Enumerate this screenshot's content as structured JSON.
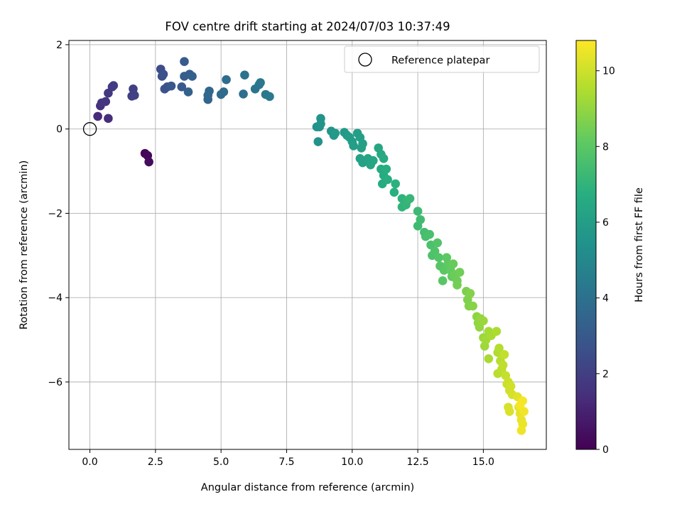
{
  "chart_data": {
    "type": "scatter",
    "title": "FOV centre drift starting at 2024/07/03 10:37:49",
    "xlabel": "Angular distance from reference (arcmin)",
    "ylabel": "Rotation from reference (arcmin)",
    "xlim": [
      -0.8,
      17.4
    ],
    "ylim": [
      -7.6,
      2.1
    ],
    "xticks": [
      0.0,
      2.5,
      5.0,
      7.5,
      10.0,
      12.5,
      15.0
    ],
    "xtick_labels": [
      "0.0",
      "2.5",
      "5.0",
      "7.5",
      "10.0",
      "12.5",
      "15.0"
    ],
    "yticks": [
      2,
      0,
      -2,
      -4,
      -6
    ],
    "ytick_labels": [
      "2",
      "0",
      "−2",
      "−4",
      "−6"
    ],
    "grid": true,
    "legend": {
      "position": "top-right",
      "entries": [
        "Reference platepar"
      ]
    },
    "reference_point": {
      "x": 0.0,
      "y": 0.0
    },
    "colorbar": {
      "label": "Hours from first FF file",
      "range": [
        0,
        10.8
      ],
      "ticks": [
        0,
        2,
        4,
        6,
        8,
        10
      ],
      "tick_labels": [
        "0",
        "2",
        "4",
        "6",
        "8",
        "10"
      ],
      "colormap": "viridis"
    },
    "points": [
      {
        "x": 2.1,
        "y": -0.58,
        "c": 0.1
      },
      {
        "x": 2.2,
        "y": -0.63,
        "c": 0.2
      },
      {
        "x": 2.25,
        "y": -0.78,
        "c": 0.3
      },
      {
        "x": 0.3,
        "y": 0.3,
        "c": 1.3
      },
      {
        "x": 0.7,
        "y": 0.25,
        "c": 1.4
      },
      {
        "x": 0.4,
        "y": 0.55,
        "c": 1.5
      },
      {
        "x": 0.45,
        "y": 0.62,
        "c": 1.6
      },
      {
        "x": 0.6,
        "y": 0.65,
        "c": 1.7
      },
      {
        "x": 0.7,
        "y": 0.85,
        "c": 1.75
      },
      {
        "x": 0.85,
        "y": 1.0,
        "c": 1.8
      },
      {
        "x": 0.9,
        "y": 1.03,
        "c": 1.9
      },
      {
        "x": 1.6,
        "y": 0.78,
        "c": 2.0
      },
      {
        "x": 1.65,
        "y": 0.95,
        "c": 2.05
      },
      {
        "x": 1.7,
        "y": 0.8,
        "c": 2.1
      },
      {
        "x": 2.7,
        "y": 1.42,
        "c": 2.5
      },
      {
        "x": 2.75,
        "y": 1.25,
        "c": 2.6
      },
      {
        "x": 2.8,
        "y": 1.3,
        "c": 2.7
      },
      {
        "x": 2.85,
        "y": 0.95,
        "c": 2.75
      },
      {
        "x": 2.95,
        "y": 1.0,
        "c": 2.8
      },
      {
        "x": 3.1,
        "y": 1.02,
        "c": 2.9
      },
      {
        "x": 3.5,
        "y": 1.0,
        "c": 3.0
      },
      {
        "x": 3.6,
        "y": 1.6,
        "c": 3.1
      },
      {
        "x": 3.6,
        "y": 1.25,
        "c": 3.15
      },
      {
        "x": 3.8,
        "y": 1.3,
        "c": 3.2
      },
      {
        "x": 3.9,
        "y": 1.25,
        "c": 3.3
      },
      {
        "x": 3.75,
        "y": 0.88,
        "c": 3.35
      },
      {
        "x": 4.5,
        "y": 0.7,
        "c": 3.5
      },
      {
        "x": 4.5,
        "y": 0.8,
        "c": 3.55
      },
      {
        "x": 4.55,
        "y": 0.9,
        "c": 3.6
      },
      {
        "x": 5.0,
        "y": 0.82,
        "c": 3.7
      },
      {
        "x": 5.1,
        "y": 0.88,
        "c": 3.75
      },
      {
        "x": 5.2,
        "y": 1.17,
        "c": 3.8
      },
      {
        "x": 5.85,
        "y": 0.83,
        "c": 3.9
      },
      {
        "x": 5.9,
        "y": 1.28,
        "c": 4.0
      },
      {
        "x": 6.3,
        "y": 0.95,
        "c": 4.1
      },
      {
        "x": 6.45,
        "y": 1.05,
        "c": 4.2
      },
      {
        "x": 6.5,
        "y": 1.1,
        "c": 4.25
      },
      {
        "x": 6.7,
        "y": 0.82,
        "c": 4.3
      },
      {
        "x": 6.85,
        "y": 0.77,
        "c": 4.4
      },
      {
        "x": 8.65,
        "y": 0.05,
        "c": 5.4
      },
      {
        "x": 8.7,
        "y": -0.3,
        "c": 5.45
      },
      {
        "x": 8.75,
        "y": 0.05,
        "c": 5.5
      },
      {
        "x": 8.8,
        "y": 0.25,
        "c": 5.55
      },
      {
        "x": 8.8,
        "y": 0.12,
        "c": 5.6
      },
      {
        "x": 9.2,
        "y": -0.05,
        "c": 5.65
      },
      {
        "x": 9.3,
        "y": -0.15,
        "c": 5.7
      },
      {
        "x": 9.35,
        "y": -0.1,
        "c": 5.75
      },
      {
        "x": 9.7,
        "y": -0.08,
        "c": 5.8
      },
      {
        "x": 9.8,
        "y": -0.15,
        "c": 5.85
      },
      {
        "x": 9.9,
        "y": -0.2,
        "c": 5.9
      },
      {
        "x": 10.0,
        "y": -0.3,
        "c": 5.95
      },
      {
        "x": 10.05,
        "y": -0.4,
        "c": 6.0
      },
      {
        "x": 10.2,
        "y": -0.1,
        "c": 6.0
      },
      {
        "x": 10.3,
        "y": -0.2,
        "c": 6.05
      },
      {
        "x": 10.35,
        "y": -0.45,
        "c": 6.1
      },
      {
        "x": 10.4,
        "y": -0.35,
        "c": 6.1
      },
      {
        "x": 10.3,
        "y": -0.7,
        "c": 6.15
      },
      {
        "x": 10.4,
        "y": -0.8,
        "c": 6.2
      },
      {
        "x": 10.6,
        "y": -0.7,
        "c": 6.25
      },
      {
        "x": 10.7,
        "y": -0.85,
        "c": 6.3
      },
      {
        "x": 10.8,
        "y": -0.75,
        "c": 6.35
      },
      {
        "x": 11.0,
        "y": -0.45,
        "c": 6.4
      },
      {
        "x": 11.1,
        "y": -0.6,
        "c": 6.45
      },
      {
        "x": 11.2,
        "y": -0.7,
        "c": 6.5
      },
      {
        "x": 11.1,
        "y": -0.95,
        "c": 6.55
      },
      {
        "x": 11.2,
        "y": -1.1,
        "c": 6.6
      },
      {
        "x": 11.15,
        "y": -1.3,
        "c": 6.65
      },
      {
        "x": 11.3,
        "y": -0.95,
        "c": 6.7
      },
      {
        "x": 11.35,
        "y": -1.2,
        "c": 6.75
      },
      {
        "x": 11.6,
        "y": -1.5,
        "c": 6.8
      },
      {
        "x": 11.65,
        "y": -1.3,
        "c": 6.85
      },
      {
        "x": 11.9,
        "y": -1.65,
        "c": 6.95
      },
      {
        "x": 11.9,
        "y": -1.85,
        "c": 7.0
      },
      {
        "x": 12.05,
        "y": -1.8,
        "c": 7.05
      },
      {
        "x": 12.1,
        "y": -1.7,
        "c": 7.1
      },
      {
        "x": 12.2,
        "y": -1.65,
        "c": 7.15
      },
      {
        "x": 12.5,
        "y": -1.95,
        "c": 7.3
      },
      {
        "x": 12.5,
        "y": -2.3,
        "c": 7.35
      },
      {
        "x": 12.6,
        "y": -2.15,
        "c": 7.4
      },
      {
        "x": 12.75,
        "y": -2.45,
        "c": 7.5
      },
      {
        "x": 12.8,
        "y": -2.55,
        "c": 7.55
      },
      {
        "x": 12.95,
        "y": -2.5,
        "c": 7.6
      },
      {
        "x": 13.0,
        "y": -2.75,
        "c": 7.65
      },
      {
        "x": 13.05,
        "y": -3.0,
        "c": 7.7
      },
      {
        "x": 13.15,
        "y": -2.9,
        "c": 7.75
      },
      {
        "x": 13.25,
        "y": -2.7,
        "c": 7.8
      },
      {
        "x": 13.3,
        "y": -3.05,
        "c": 7.85
      },
      {
        "x": 13.35,
        "y": -3.25,
        "c": 7.9
      },
      {
        "x": 13.45,
        "y": -3.6,
        "c": 7.95
      },
      {
        "x": 13.5,
        "y": -3.35,
        "c": 8.0
      },
      {
        "x": 13.6,
        "y": -3.05,
        "c": 8.05
      },
      {
        "x": 13.65,
        "y": -3.2,
        "c": 8.1
      },
      {
        "x": 13.75,
        "y": -3.35,
        "c": 8.15
      },
      {
        "x": 13.8,
        "y": -3.5,
        "c": 8.2
      },
      {
        "x": 13.85,
        "y": -3.2,
        "c": 8.25
      },
      {
        "x": 13.9,
        "y": -3.45,
        "c": 8.3
      },
      {
        "x": 14.0,
        "y": -3.6,
        "c": 8.35
      },
      {
        "x": 14.1,
        "y": -3.4,
        "c": 8.4
      },
      {
        "x": 14.0,
        "y": -3.7,
        "c": 8.45
      },
      {
        "x": 14.35,
        "y": -3.85,
        "c": 8.6
      },
      {
        "x": 14.4,
        "y": -4.05,
        "c": 8.65
      },
      {
        "x": 14.45,
        "y": -4.2,
        "c": 8.7
      },
      {
        "x": 14.5,
        "y": -3.9,
        "c": 8.75
      },
      {
        "x": 14.6,
        "y": -4.2,
        "c": 8.8
      },
      {
        "x": 14.75,
        "y": -4.45,
        "c": 8.9
      },
      {
        "x": 14.8,
        "y": -4.6,
        "c": 8.95
      },
      {
        "x": 14.85,
        "y": -4.7,
        "c": 9.0
      },
      {
        "x": 14.9,
        "y": -4.5,
        "c": 9.05
      },
      {
        "x": 15.0,
        "y": -4.55,
        "c": 9.1
      },
      {
        "x": 15.0,
        "y": -4.95,
        "c": 9.15
      },
      {
        "x": 15.05,
        "y": -5.15,
        "c": 9.2
      },
      {
        "x": 15.1,
        "y": -5.0,
        "c": 9.25
      },
      {
        "x": 15.2,
        "y": -4.8,
        "c": 9.3
      },
      {
        "x": 15.3,
        "y": -4.9,
        "c": 9.35
      },
      {
        "x": 15.2,
        "y": -5.45,
        "c": 9.4
      },
      {
        "x": 15.5,
        "y": -4.8,
        "c": 9.45
      },
      {
        "x": 15.55,
        "y": -5.3,
        "c": 9.5
      },
      {
        "x": 15.6,
        "y": -5.2,
        "c": 9.55
      },
      {
        "x": 15.65,
        "y": -5.5,
        "c": 9.6
      },
      {
        "x": 15.55,
        "y": -5.8,
        "c": 9.65
      },
      {
        "x": 15.7,
        "y": -5.7,
        "c": 9.7
      },
      {
        "x": 15.75,
        "y": -5.6,
        "c": 9.75
      },
      {
        "x": 15.8,
        "y": -5.35,
        "c": 9.8
      },
      {
        "x": 15.85,
        "y": -5.85,
        "c": 9.85
      },
      {
        "x": 15.9,
        "y": -6.05,
        "c": 9.9
      },
      {
        "x": 15.95,
        "y": -6.0,
        "c": 9.95
      },
      {
        "x": 16.0,
        "y": -6.2,
        "c": 10.0
      },
      {
        "x": 16.05,
        "y": -6.1,
        "c": 10.05
      },
      {
        "x": 16.1,
        "y": -6.3,
        "c": 10.1
      },
      {
        "x": 15.95,
        "y": -6.6,
        "c": 10.15
      },
      {
        "x": 16.0,
        "y": -6.7,
        "c": 10.2
      },
      {
        "x": 16.3,
        "y": -6.35,
        "c": 10.3
      },
      {
        "x": 16.35,
        "y": -6.6,
        "c": 10.35
      },
      {
        "x": 16.4,
        "y": -6.75,
        "c": 10.4
      },
      {
        "x": 16.45,
        "y": -6.9,
        "c": 10.45
      },
      {
        "x": 16.5,
        "y": -7.0,
        "c": 10.5
      },
      {
        "x": 16.45,
        "y": -7.15,
        "c": 10.55
      },
      {
        "x": 16.55,
        "y": -6.7,
        "c": 10.6
      },
      {
        "x": 16.5,
        "y": -6.45,
        "c": 10.65
      },
      {
        "x": 16.4,
        "y": -6.55,
        "c": 10.7
      }
    ]
  }
}
